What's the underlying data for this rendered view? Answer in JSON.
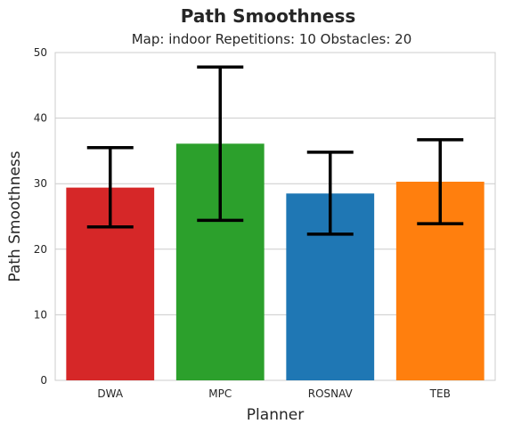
{
  "chart_data": {
    "type": "bar",
    "title": "Path Smoothness",
    "subtitle": "Map: indoor Repetitions: 10 Obstacles: 20",
    "xlabel": "Planner",
    "ylabel": "Path Smoothness",
    "categories": [
      "DWA",
      "MPC",
      "ROSNAV",
      "TEB"
    ],
    "values": [
      29.4,
      36.1,
      28.5,
      30.3
    ],
    "error_low": [
      23.4,
      24.4,
      22.3,
      23.9
    ],
    "error_high": [
      35.5,
      47.8,
      34.8,
      36.7
    ],
    "colors": [
      "#d62728",
      "#2ca02c",
      "#1f77b4",
      "#ff7f0e"
    ],
    "ylim": [
      0,
      50
    ],
    "yticks": [
      0,
      10,
      20,
      30,
      40,
      50
    ],
    "grid": true
  }
}
